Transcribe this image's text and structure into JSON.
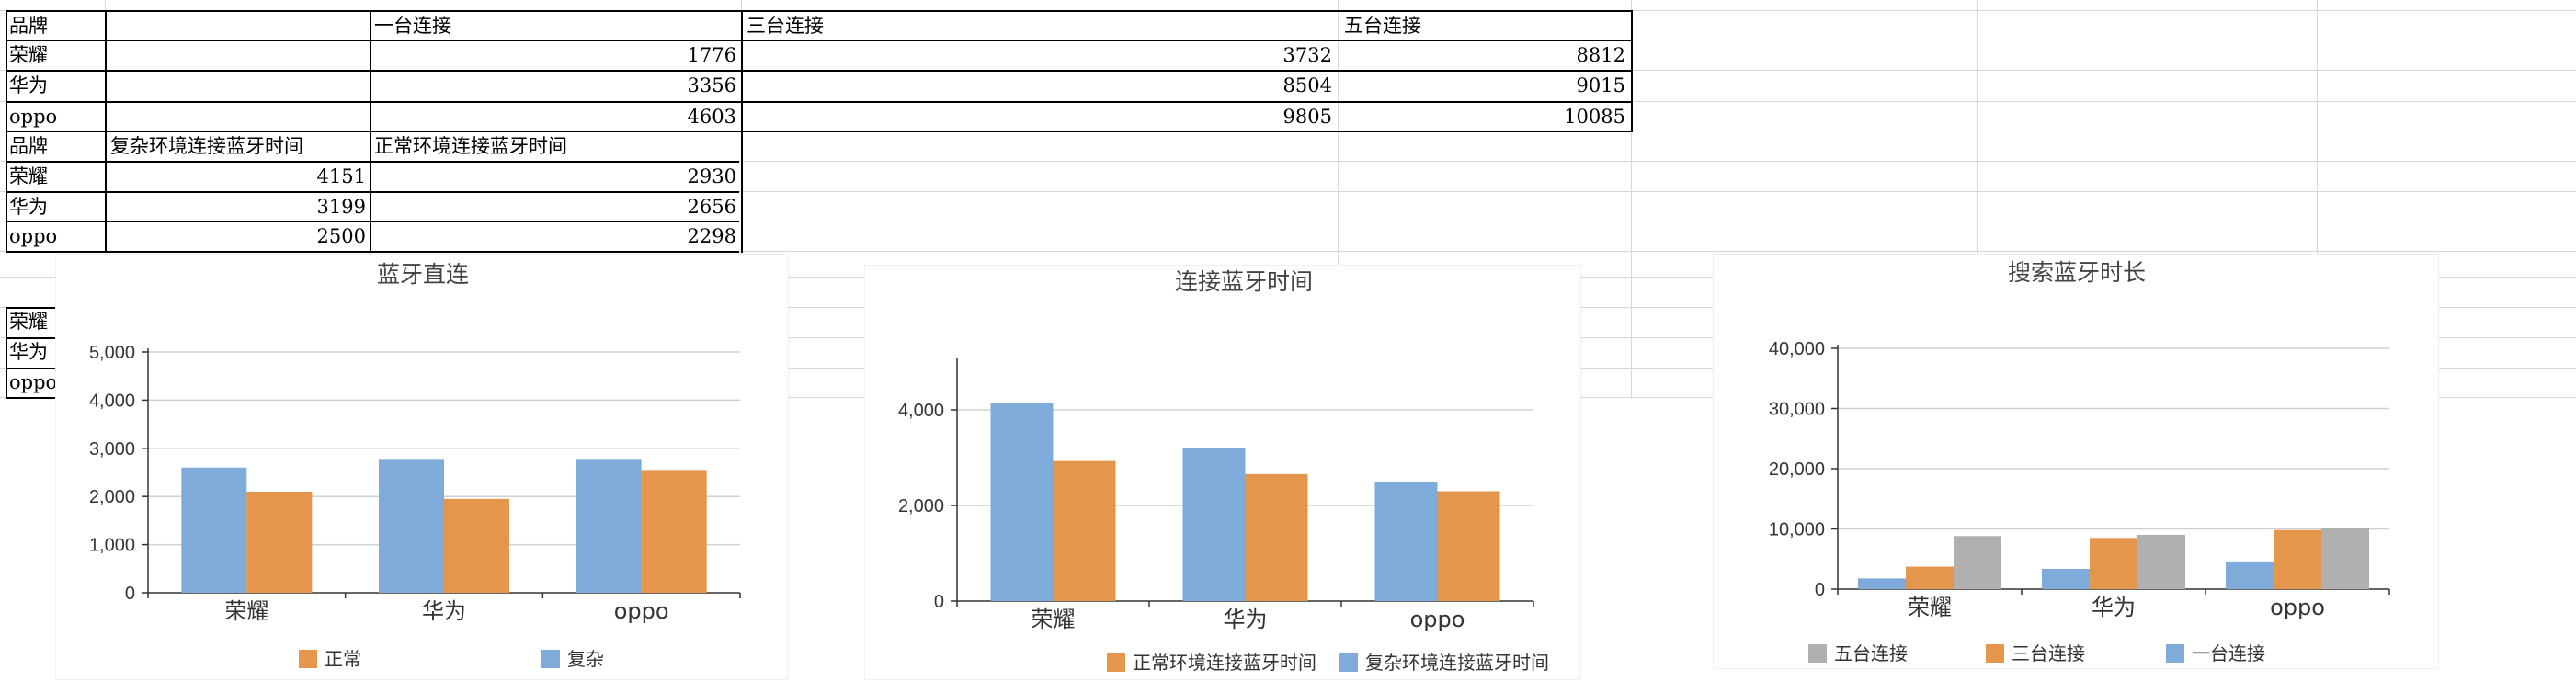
{
  "sheet": {
    "table1": {
      "header": [
        "品牌",
        "",
        "一台连接",
        "三台连接",
        "五台连接"
      ],
      "rows": [
        {
          "brand": "荣耀",
          "v1": "1776",
          "v3": "3732",
          "v5": "8812"
        },
        {
          "brand": "华为",
          "v1": "3356",
          "v3": "8504",
          "v5": "9015"
        },
        {
          "brand": "oppo",
          "v1": "4603",
          "v3": "9805",
          "v5": "10085"
        }
      ]
    },
    "table2": {
      "header": [
        "品牌",
        "复杂环境连接蓝牙时间",
        "正常环境连接蓝牙时间"
      ],
      "rows": [
        {
          "brand": "荣耀",
          "complex": "4151",
          "normal": "2930"
        },
        {
          "brand": "华为",
          "complex": "3199",
          "normal": "2656"
        },
        {
          "brand": "oppo",
          "complex": "2500",
          "normal": "2298"
        }
      ]
    },
    "table3": {
      "rows": [
        {
          "brand": "荣耀"
        },
        {
          "brand": "华为"
        },
        {
          "brand": "oppo"
        }
      ]
    }
  },
  "colors": {
    "blue": "#7eabda",
    "orange": "#e5964d",
    "gray": "#b0b0b0",
    "grid": "#d0d0d0",
    "axis": "#333333"
  },
  "chart_data": [
    {
      "type": "bar",
      "title": "蓝牙直连",
      "categories": [
        "荣耀",
        "华为",
        "oppo"
      ],
      "series": [
        {
          "name": "复杂",
          "values": [
            2600,
            2780,
            2780
          ],
          "color": "#7eabda"
        },
        {
          "name": "正常",
          "values": [
            2100,
            1950,
            2550
          ],
          "color": "#e5964d"
        }
      ],
      "ylim": [
        0,
        5000
      ],
      "yticks": [
        0,
        1000,
        2000,
        3000,
        4000,
        5000
      ],
      "ytick_labels": [
        "0",
        "1,000",
        "2,000",
        "3,000",
        "4,000",
        "5,000"
      ],
      "legend": [
        {
          "name": "正常",
          "color": "#e5964d"
        },
        {
          "name": "复杂",
          "color": "#7eabda"
        }
      ],
      "legend_position": "bottom",
      "grid": true
    },
    {
      "type": "bar",
      "title": "连接蓝牙时间",
      "categories": [
        "荣耀",
        "华为",
        "oppo"
      ],
      "series": [
        {
          "name": "复杂环境连接蓝牙时间",
          "values": [
            4151,
            3199,
            2500
          ],
          "color": "#7eabda"
        },
        {
          "name": "正常环境连接蓝牙时间",
          "values": [
            2930,
            2656,
            2298
          ],
          "color": "#e5964d"
        }
      ],
      "ylim": [
        0,
        6000
      ],
      "yticks": [
        0,
        2000,
        4000
      ],
      "ytick_labels": [
        "0",
        "2,000",
        "4,000"
      ],
      "legend": [
        {
          "name": "正常环境连接蓝牙时间",
          "color": "#e5964d"
        },
        {
          "name": "复杂环境连接蓝牙时间",
          "color": "#7eabda"
        }
      ],
      "legend_position": "bottom",
      "grid": true
    },
    {
      "type": "bar",
      "title": "搜索蓝牙时长",
      "categories": [
        "荣耀",
        "华为",
        "oppo"
      ],
      "series": [
        {
          "name": "一台连接",
          "values": [
            1776,
            3356,
            4603
          ],
          "color": "#7eabda"
        },
        {
          "name": "三台连接",
          "values": [
            3732,
            8504,
            9805
          ],
          "color": "#e5964d"
        },
        {
          "name": "五台连接",
          "values": [
            8812,
            9015,
            10085
          ],
          "color": "#b0b0b0"
        }
      ],
      "ylim": [
        0,
        40000
      ],
      "yticks": [
        0,
        10000,
        20000,
        30000,
        40000
      ],
      "ytick_labels": [
        "0",
        "10,000",
        "20,000",
        "30,000",
        "40,000"
      ],
      "legend": [
        {
          "name": "五台连接",
          "color": "#b0b0b0"
        },
        {
          "name": "三台连接",
          "color": "#e5964d"
        },
        {
          "name": "一台连接",
          "color": "#7eabda"
        }
      ],
      "legend_position": "bottom",
      "grid": true
    }
  ]
}
